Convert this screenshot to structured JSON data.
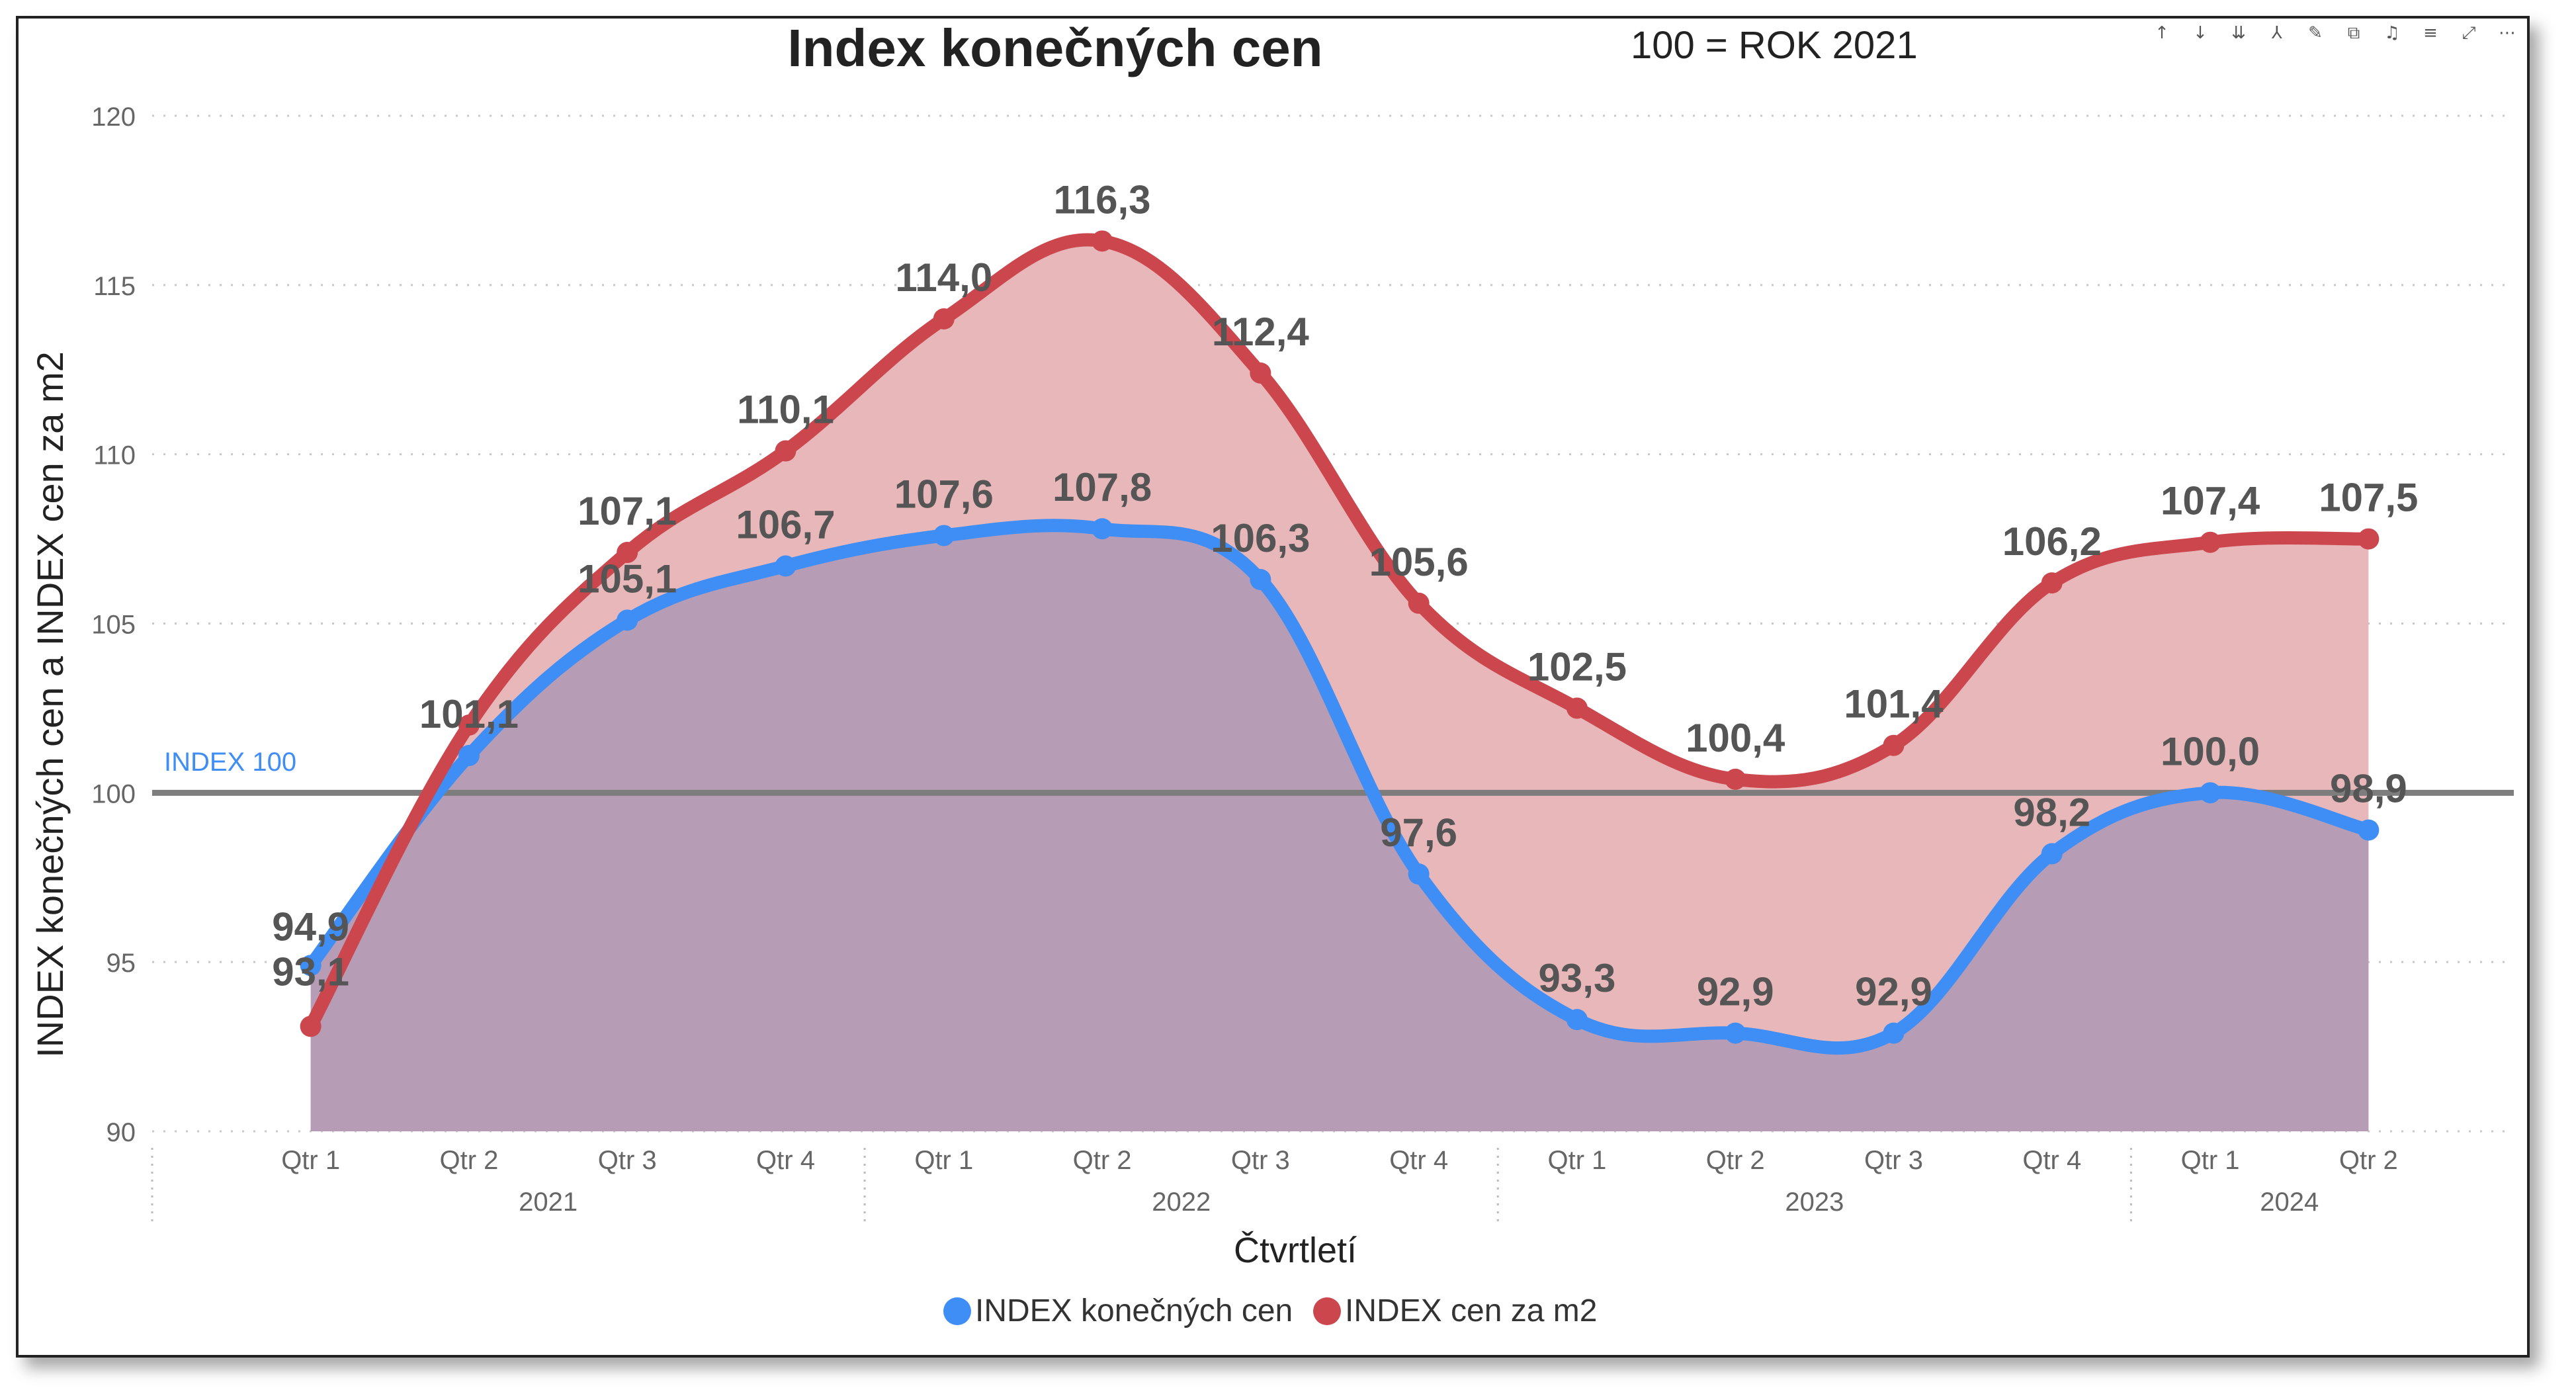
{
  "chart_data": {
    "type": "area",
    "title": "Index konečných cen",
    "subtitle": "100 = ROK 2021",
    "xlabel": "Čtvrtletí",
    "ylabel": "INDEX konečných cen a INDEX cen za m2",
    "ylim": [
      90,
      120
    ],
    "yticks": [
      "90",
      "95",
      "100",
      "105",
      "110",
      "115",
      "120"
    ],
    "grid": true,
    "legend_position": "bottom-center",
    "quarters": [
      "Qtr 1",
      "Qtr 2",
      "Qtr 3",
      "Qtr 4",
      "Qtr 1",
      "Qtr 2",
      "Qtr 3",
      "Qtr 4",
      "Qtr 1",
      "Qtr 2",
      "Qtr 3",
      "Qtr 4",
      "Qtr 1",
      "Qtr 2"
    ],
    "years": [
      {
        "label": "2021",
        "start": 0,
        "count": 4
      },
      {
        "label": "2022",
        "start": 4,
        "count": 4
      },
      {
        "label": "2023",
        "start": 8,
        "count": 4
      },
      {
        "label": "2024",
        "start": 12,
        "count": 2
      }
    ],
    "series": [
      {
        "name": "INDEX konečných cen",
        "color": "#3f8ef5",
        "fill": "#9ec3f0",
        "values": [
          94.9,
          101.1,
          105.1,
          106.7,
          107.6,
          107.8,
          106.3,
          97.6,
          93.3,
          92.9,
          92.9,
          98.2,
          100.0,
          98.9
        ],
        "labels": [
          "94,9",
          "101,1",
          "105,1",
          "106,7",
          "107,6",
          "107,8",
          "106,3",
          "97,6",
          "93,3",
          "92,9",
          "92,9",
          "98,2",
          "100,0",
          "98,9"
        ]
      },
      {
        "name": "INDEX cen za m2",
        "color": "#cc474d",
        "fill": "#e8b7b9",
        "values": [
          93.1,
          102.0,
          107.1,
          110.1,
          114.0,
          116.3,
          112.4,
          105.6,
          102.5,
          100.4,
          101.4,
          106.2,
          107.4,
          107.5
        ],
        "labels": [
          "93,1",
          "",
          "107,1",
          "110,1",
          "114,0",
          "116,3",
          "112,4",
          "105,6",
          "102,5",
          "100,4",
          "101,4",
          "106,2",
          "107,4",
          "107,5"
        ]
      }
    ],
    "reference_line": {
      "value": 100,
      "label": "INDEX 100",
      "color": "#7d7d7d",
      "label_color": "#3f8ef5"
    },
    "overlap_fill": "#b79cb6"
  },
  "toolbar": {
    "icons": [
      "arrow-up-icon",
      "arrow-down-icon",
      "double-arrow-down-icon",
      "hierarchy-icon",
      "pin-icon",
      "copy-icon",
      "bell-icon",
      "filter-icon",
      "expand-icon",
      "more-icon"
    ],
    "glyphs": [
      "↑",
      "↓",
      "⇊",
      "⅄",
      "✎",
      "⧉",
      "♫",
      "≡",
      "⤢",
      "⋯"
    ]
  }
}
